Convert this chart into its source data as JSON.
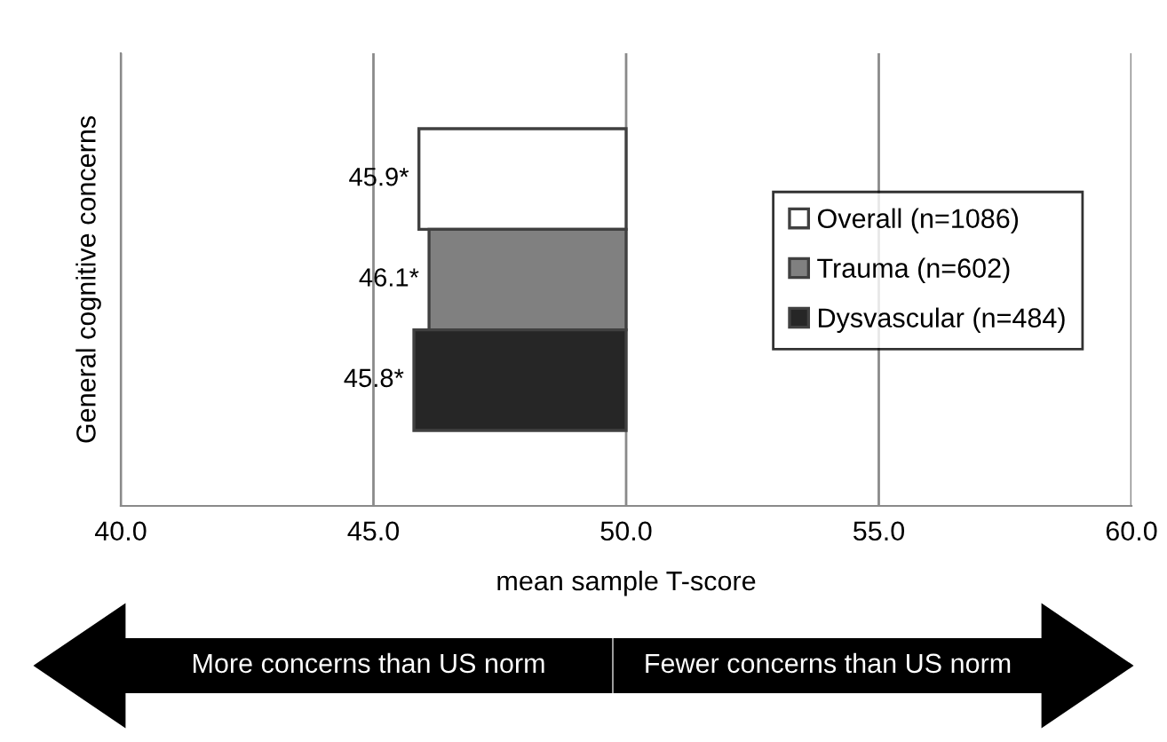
{
  "chart_data": {
    "type": "bar",
    "orientation": "horizontal",
    "ylabel": "General cognitive concerns",
    "xlabel": "mean sample T-score",
    "categories": [
      null
    ],
    "series": [
      {
        "name": "Overall (n=1086)",
        "color": "#ffffff",
        "values": [
          -4.1
        ],
        "base": [
          50
        ],
        "value_labels": [
          "45.9*"
        ]
      },
      {
        "name": "Trauma (n=602)",
        "color": "#808080",
        "values": [
          -3.9
        ],
        "base": [
          50
        ],
        "value_labels": [
          "46.1*"
        ]
      },
      {
        "name": "Dysvascular (n=484)",
        "color": "#262626",
        "values": [
          -4.2
        ],
        "base": [
          50
        ],
        "value_labels": [
          "45.8*"
        ]
      }
    ],
    "xlim": [
      40,
      60
    ],
    "xticks": [
      {
        "value": 40,
        "label": "40.0"
      },
      {
        "value": 45,
        "label": "45.0"
      },
      {
        "value": 50,
        "label": "50.0"
      },
      {
        "value": 55,
        "label": "55.0"
      },
      {
        "value": 60,
        "label": "60.0"
      }
    ],
    "grid": "x",
    "legend": "right",
    "annotations": [
      "More concerns than US norm",
      "Fewer concerns than US norm"
    ]
  }
}
